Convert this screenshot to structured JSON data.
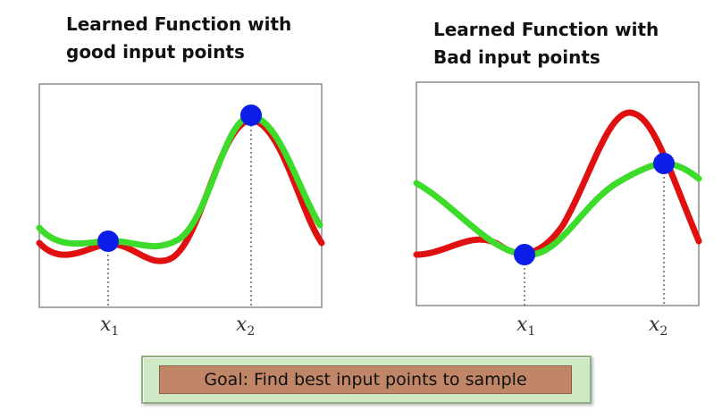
{
  "panels": [
    {
      "title_lines": [
        "Learned Function with",
        "good input points"
      ],
      "x_ticks": [
        {
          "base": "x",
          "sub": "1"
        },
        {
          "base": "x",
          "sub": "2"
        }
      ]
    },
    {
      "title_lines": [
        "Learned Function with",
        "Bad input points"
      ],
      "x_ticks": [
        {
          "base": "x",
          "sub": "1"
        },
        {
          "base": "x",
          "sub": "2"
        }
      ]
    }
  ],
  "goal": {
    "text": "Goal: Find best input points to sample"
  },
  "colors": {
    "true_function": "#e01010",
    "learned_function": "#3ddc2a",
    "sample_point": "#0a1ee8",
    "frame": "#8a8a8a",
    "dotted_line": "#666666"
  }
}
